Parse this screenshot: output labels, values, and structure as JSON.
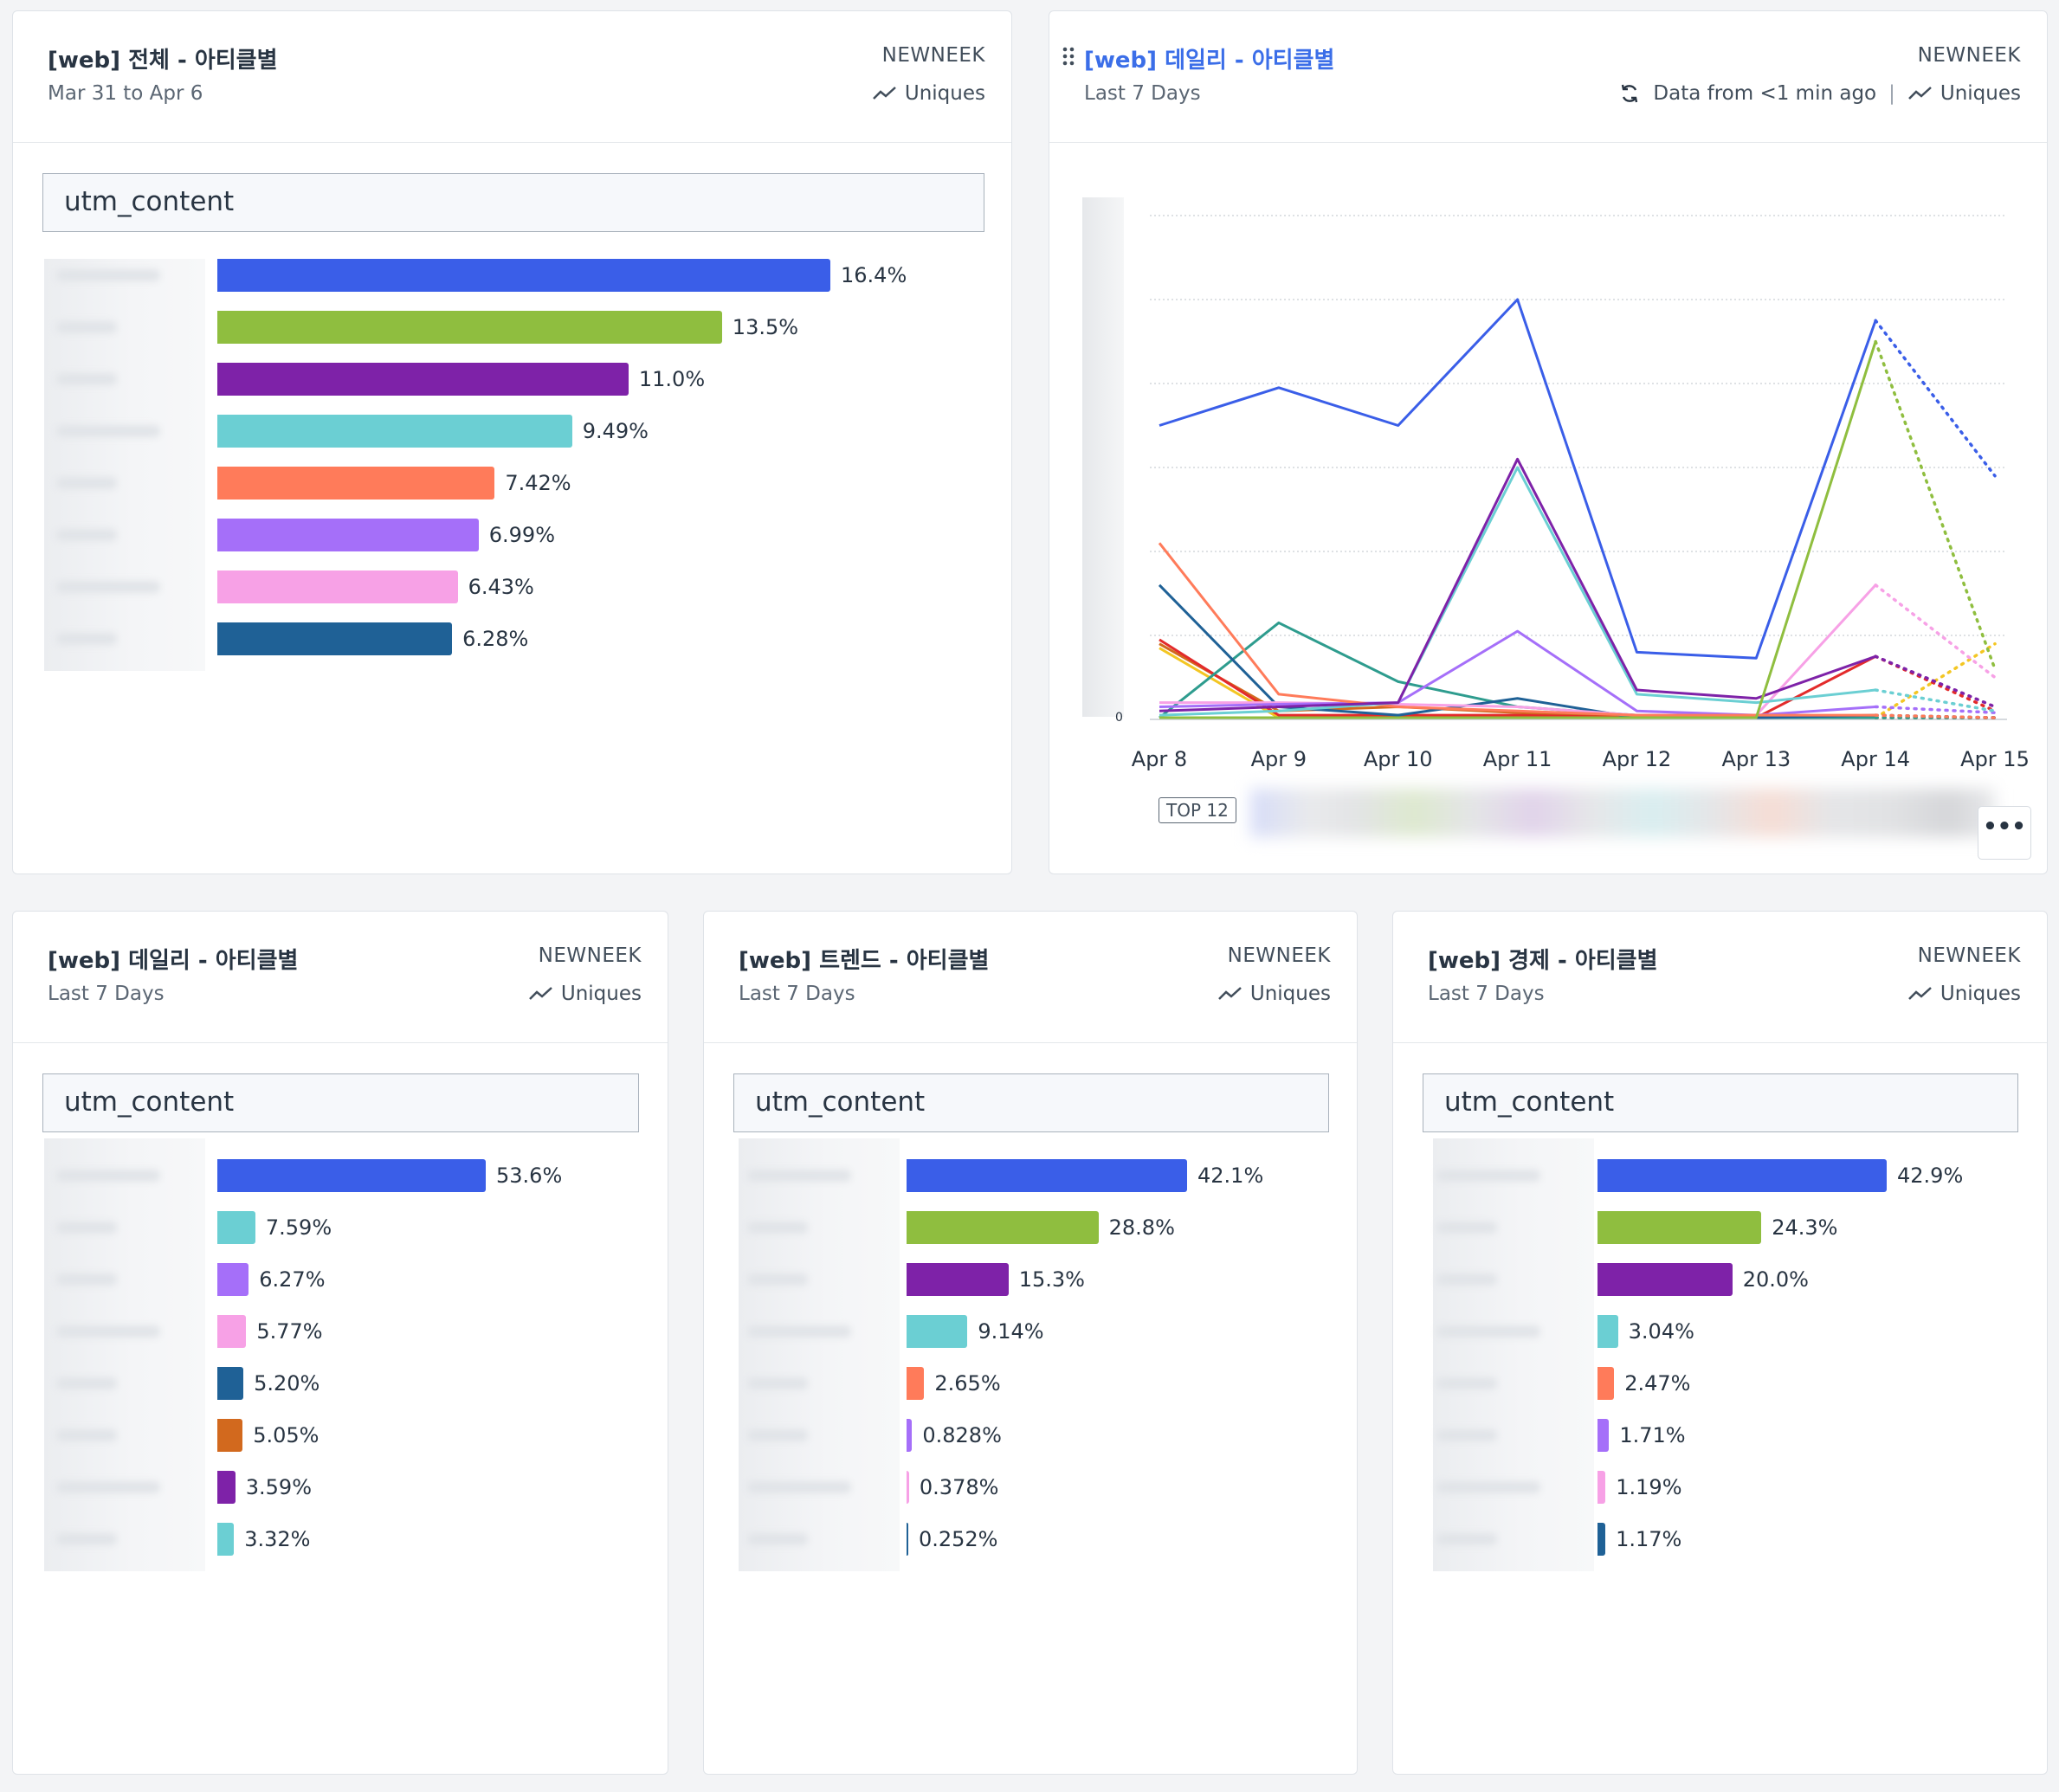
{
  "colors": {
    "blue": "#3a5ee8",
    "green": "#8fbe3f",
    "purple": "#7e22a8",
    "teal": "#6bcfd3",
    "salmon": "#ff7b5a",
    "lavender": "#a56ff9",
    "pink": "#f7a1e6",
    "navy": "#1f6196",
    "orange": "#d2691e",
    "red": "#e32b2b",
    "dark_teal": "#2e9c8e",
    "yellow": "#f3c623"
  },
  "cards": [
    {
      "title": "[web] 전체 - 아티클별",
      "subtitle": "Mar 31 to Apr 6",
      "org": "NEWNEEK",
      "metric": "Uniques",
      "metric_icon": "line-chart-icon",
      "field": "utm_content",
      "chart_data": {
        "type": "bar",
        "orientation": "horizontal",
        "categories_visible": false,
        "values": [
          16.4,
          13.5,
          11.0,
          9.49,
          7.42,
          6.99,
          6.43,
          6.28
        ],
        "value_labels": [
          "16.4%",
          "13.5%",
          "11.0%",
          "9.49%",
          "7.42%",
          "6.99%",
          "6.43%",
          "6.28%"
        ],
        "colors": [
          "#3a5ee8",
          "#8fbe3f",
          "#7e22a8",
          "#6bcfd3",
          "#ff7b5a",
          "#a56ff9",
          "#f7a1e6",
          "#1f6196"
        ]
      }
    },
    {
      "title": "[web] 데일리 - 아티클별",
      "subtitle": "Last 7 Days",
      "org": "NEWNEEK",
      "refresh_icon": "refresh-icon",
      "drag_icon": "drag-handle-icon",
      "data_from": "Data from <1 min ago",
      "separator": "|",
      "metric": "Uniques",
      "metric_icon": "line-chart-icon",
      "top_badge": "TOP 12",
      "more_label": "•••",
      "y_zero_label": "0",
      "chart_data": {
        "type": "line",
        "x": [
          "Apr 8",
          "Apr 9",
          "Apr 10",
          "Apr 11",
          "Apr 12",
          "Apr 13",
          "Apr 14",
          "Apr 15"
        ],
        "y_tick_labels_visible": false,
        "ylim": [
          0,
          6
        ],
        "grid": true,
        "last_segment_dotted": true,
        "series": [
          {
            "color": "#3a5ee8",
            "values": [
              3.5,
              3.95,
              3.5,
              5.0,
              0.8,
              0.73,
              4.75,
              2.9
            ]
          },
          {
            "color": "#8fbe3f",
            "values": [
              0.02,
              0.02,
              0.02,
              0.02,
              0.02,
              0.02,
              4.5,
              0.6
            ]
          },
          {
            "color": "#7e22a8",
            "values": [
              0.1,
              0.15,
              0.2,
              3.1,
              0.35,
              0.25,
              0.75,
              0.15
            ]
          },
          {
            "color": "#6bcfd3",
            "values": [
              0.05,
              0.1,
              0.2,
              3.0,
              0.3,
              0.2,
              0.35,
              0.1
            ]
          },
          {
            "color": "#ff7b5a",
            "values": [
              2.1,
              0.3,
              0.15,
              0.1,
              0.05,
              0.05,
              0.05,
              0.02
            ]
          },
          {
            "color": "#a56ff9",
            "values": [
              0.15,
              0.18,
              0.2,
              1.05,
              0.1,
              0.05,
              0.15,
              0.08
            ]
          },
          {
            "color": "#f7a1e6",
            "values": [
              0.2,
              0.2,
              0.18,
              0.15,
              0.05,
              0.05,
              1.6,
              0.5
            ]
          },
          {
            "color": "#1f6196",
            "values": [
              1.6,
              0.15,
              0.05,
              0.25,
              0.02,
              0.02,
              0.05,
              0.02
            ]
          },
          {
            "color": "#2e9c8e",
            "values": [
              0.02,
              1.15,
              0.45,
              0.15,
              0.05,
              0.02,
              0.02,
              0.02
            ]
          },
          {
            "color": "#e32b2b",
            "values": [
              0.95,
              0.05,
              0.05,
              0.05,
              0.02,
              0.02,
              0.75,
              0.1
            ]
          },
          {
            "color": "#d2691e",
            "values": [
              0.9,
              0.1,
              0.15,
              0.08,
              0.02,
              0.02,
              0.02,
              0.02
            ]
          },
          {
            "color": "#f3c623",
            "values": [
              0.85,
              0.02,
              0.02,
              0.02,
              0.02,
              0.02,
              0.02,
              0.9
            ]
          }
        ]
      }
    },
    {
      "title": "[web] 데일리 - 아티클별",
      "subtitle": "Last 7 Days",
      "org": "NEWNEEK",
      "metric": "Uniques",
      "metric_icon": "line-chart-icon",
      "field": "utm_content",
      "chart_data": {
        "type": "bar",
        "orientation": "horizontal",
        "categories_visible": false,
        "values": [
          53.6,
          7.59,
          6.27,
          5.77,
          5.2,
          5.05,
          3.59,
          3.32
        ],
        "value_labels": [
          "53.6%",
          "7.59%",
          "6.27%",
          "5.77%",
          "5.20%",
          "5.05%",
          "3.59%",
          "3.32%"
        ],
        "colors": [
          "#3a5ee8",
          "#6bcfd3",
          "#a56ff9",
          "#f7a1e6",
          "#1f6196",
          "#d2691e",
          "#7e22a8",
          "#6bcfd3"
        ]
      }
    },
    {
      "title": "[web] 트렌드 - 아티클별",
      "subtitle": "Last 7 Days",
      "org": "NEWNEEK",
      "metric": "Uniques",
      "metric_icon": "line-chart-icon",
      "field": "utm_content",
      "chart_data": {
        "type": "bar",
        "orientation": "horizontal",
        "categories_visible": false,
        "values": [
          42.1,
          28.8,
          15.3,
          9.14,
          2.65,
          0.828,
          0.378,
          0.252
        ],
        "value_labels": [
          "42.1%",
          "28.8%",
          "15.3%",
          "9.14%",
          "2.65%",
          "0.828%",
          "0.378%",
          "0.252%"
        ],
        "colors": [
          "#3a5ee8",
          "#8fbe3f",
          "#7e22a8",
          "#6bcfd3",
          "#ff7b5a",
          "#a56ff9",
          "#f7a1e6",
          "#1f6196"
        ]
      }
    },
    {
      "title": "[web] 경제 - 아티클별",
      "subtitle": "Last 7 Days",
      "org": "NEWNEEK",
      "metric": "Uniques",
      "metric_icon": "line-chart-icon",
      "field": "utm_content",
      "chart_data": {
        "type": "bar",
        "orientation": "horizontal",
        "categories_visible": false,
        "values": [
          42.9,
          24.3,
          20.0,
          3.04,
          2.47,
          1.71,
          1.19,
          1.17
        ],
        "value_labels": [
          "42.9%",
          "24.3%",
          "20.0%",
          "3.04%",
          "2.47%",
          "1.71%",
          "1.19%",
          "1.17%"
        ],
        "colors": [
          "#3a5ee8",
          "#8fbe3f",
          "#7e22a8",
          "#6bcfd3",
          "#ff7b5a",
          "#a56ff9",
          "#f7a1e6",
          "#1f6196"
        ]
      }
    }
  ]
}
